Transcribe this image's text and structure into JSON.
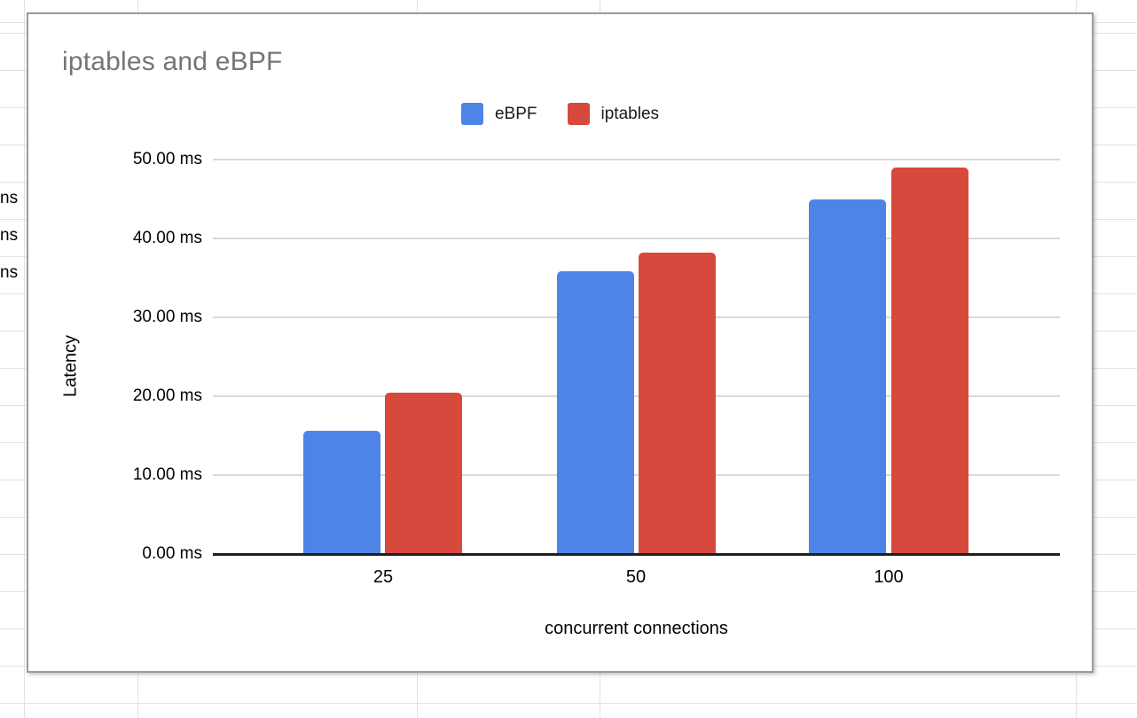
{
  "background": {
    "cell_fragments": [
      "ns",
      "ns",
      "ns"
    ]
  },
  "chart_data": {
    "type": "bar",
    "title": "iptables and eBPF",
    "categories": [
      "25",
      "50",
      "100"
    ],
    "series": [
      {
        "name": "eBPF",
        "color": "#4e84e8",
        "values": [
          15.5,
          35.7,
          44.8
        ]
      },
      {
        "name": "iptables",
        "color": "#d8493d",
        "values": [
          20.3,
          38.1,
          48.9
        ]
      }
    ],
    "xlabel": "concurrent connections",
    "ylabel": "Latency",
    "unit": "ms",
    "ylim": [
      0,
      50
    ],
    "ytick_interval": 10,
    "yaxis_labels_top_down": [
      "50.00 ms",
      "40.00 ms",
      "30.00 ms",
      "20.00 ms",
      "10.00 ms",
      "0.00 ms"
    ],
    "legend_position": "top-center",
    "grid": true
  }
}
